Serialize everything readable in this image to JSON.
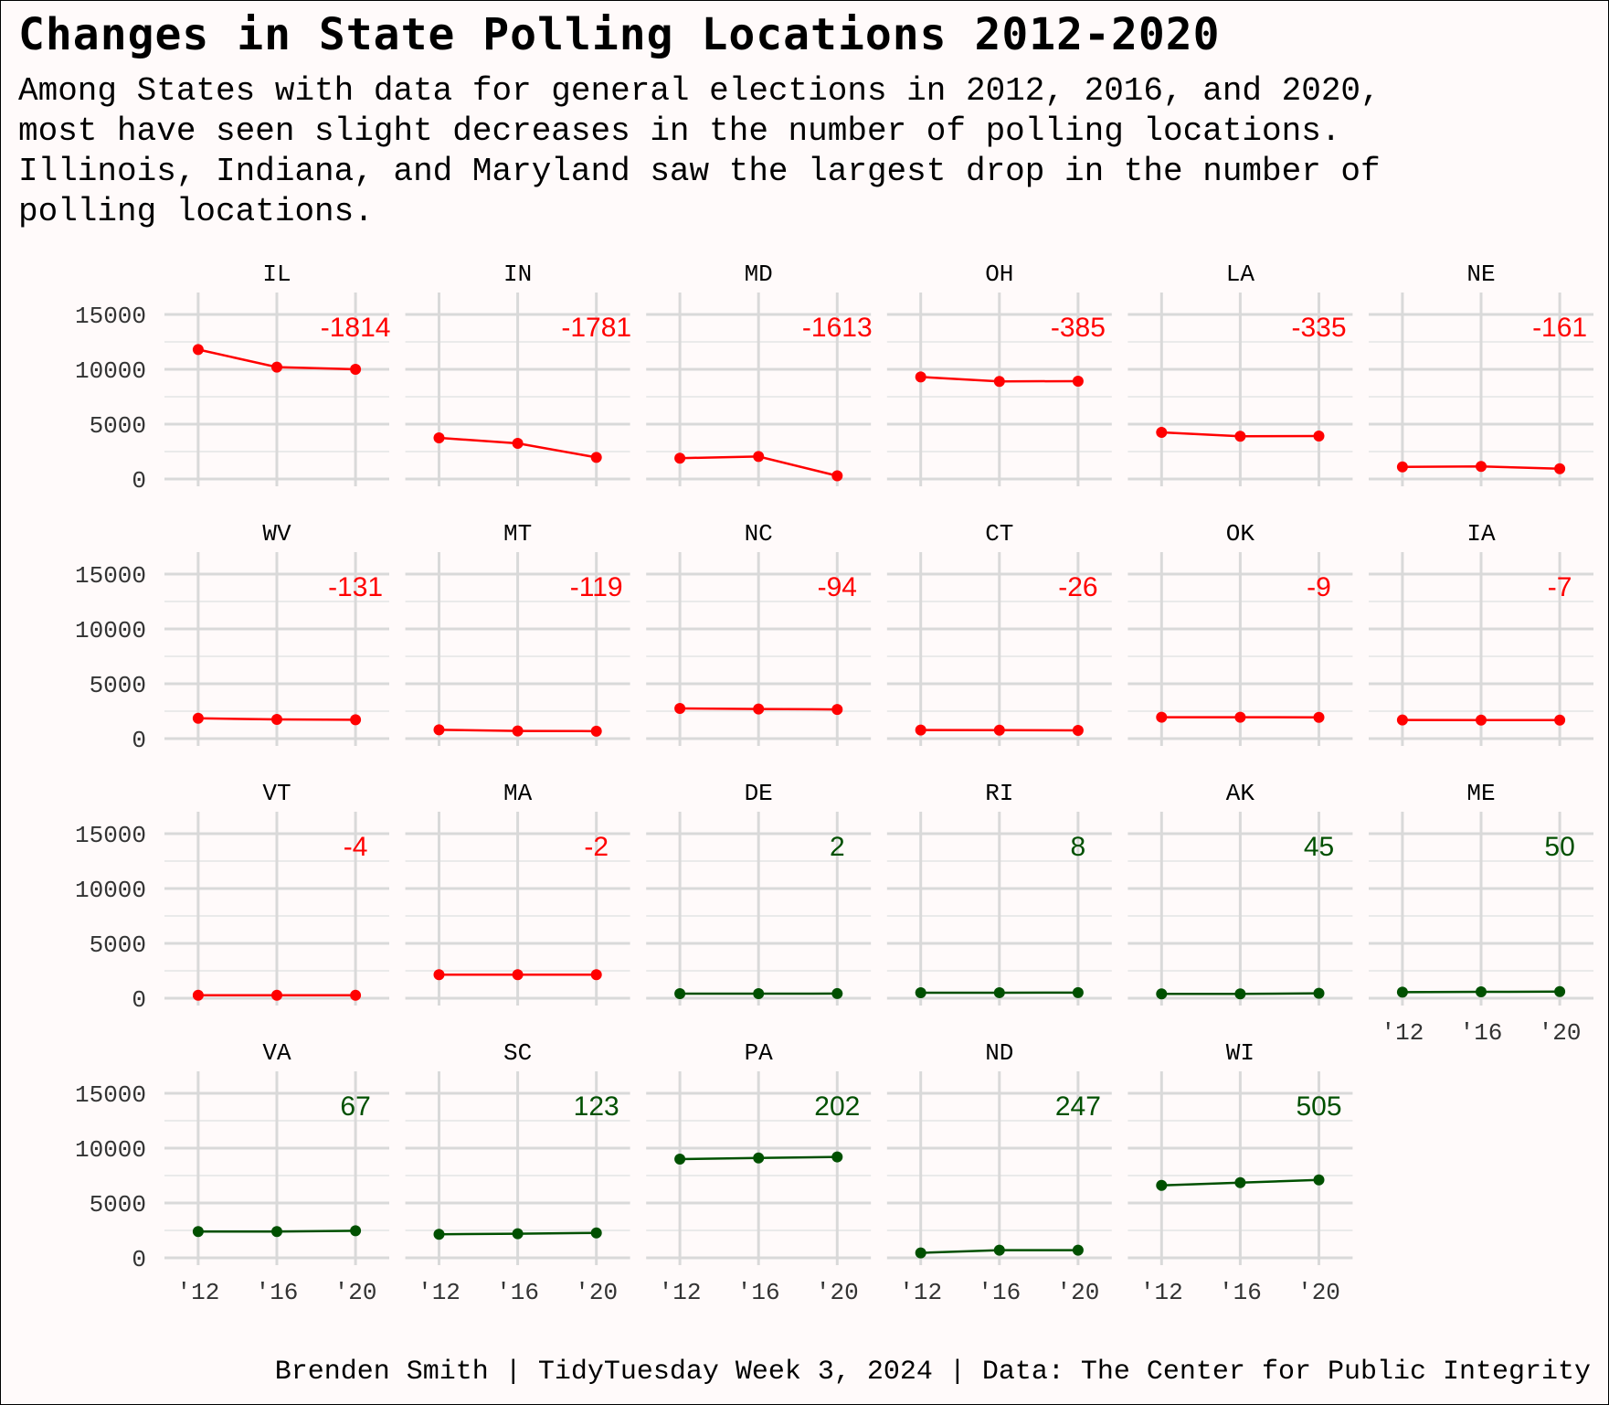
{
  "title": "Changes in State Polling Locations 2012-2020",
  "subtitle": "Among States with data for general elections in 2012, 2016, and 2020,\nmost have seen slight decreases in the number of polling locations.\nIllinois, Indiana, and Maryland saw the largest drop in the number of\npolling locations.",
  "caption": "Brenden Smith | TidyTuesday Week 3, 2024 | Data: The Center for Public Integrity",
  "colors": {
    "decrease": "#ff0000",
    "increase": "#005000",
    "grid": "#d9d9d9",
    "background": "#fffafa"
  },
  "chart_data": {
    "type": "line",
    "layout": "small-multiples",
    "x": [
      "'12",
      "'16",
      "'20"
    ],
    "y_ticks": [
      "0",
      "5000",
      "10000",
      "15000"
    ],
    "ylim": [
      0,
      15000
    ],
    "panels": [
      {
        "state": "IL",
        "label": "-1814",
        "values": [
          11800,
          10200,
          10000
        ]
      },
      {
        "state": "IN",
        "label": "-1781",
        "values": [
          3750,
          3250,
          1970
        ]
      },
      {
        "state": "MD",
        "label": "-1613",
        "values": [
          1900,
          2050,
          290
        ]
      },
      {
        "state": "OH",
        "label": "-385",
        "values": [
          9300,
          8900,
          8920
        ]
      },
      {
        "state": "LA",
        "label": "-335",
        "values": [
          4250,
          3900,
          3920
        ]
      },
      {
        "state": "NE",
        "label": "-161",
        "values": [
          1100,
          1150,
          940
        ]
      },
      {
        "state": "WV",
        "label": "-131",
        "values": [
          1850,
          1750,
          1720
        ]
      },
      {
        "state": "MT",
        "label": "-119",
        "values": [
          800,
          700,
          680
        ]
      },
      {
        "state": "NC",
        "label": "-94",
        "values": [
          2750,
          2700,
          2660
        ]
      },
      {
        "state": "CT",
        "label": "-26",
        "values": [
          780,
          770,
          750
        ]
      },
      {
        "state": "OK",
        "label": "-9",
        "values": [
          1950,
          1950,
          1940
        ]
      },
      {
        "state": "IA",
        "label": "-7",
        "values": [
          1700,
          1690,
          1690
        ]
      },
      {
        "state": "VT",
        "label": "-4",
        "values": [
          270,
          270,
          266
        ]
      },
      {
        "state": "MA",
        "label": "-2",
        "values": [
          2150,
          2150,
          2148
        ]
      },
      {
        "state": "DE",
        "label": "2",
        "values": [
          420,
          420,
          422
        ]
      },
      {
        "state": "RI",
        "label": "8",
        "values": [
          500,
          505,
          508
        ]
      },
      {
        "state": "AK",
        "label": "45",
        "values": [
          400,
          400,
          445
        ]
      },
      {
        "state": "ME",
        "label": "50",
        "values": [
          550,
          580,
          600
        ]
      },
      {
        "state": "VA",
        "label": "67",
        "values": [
          2400,
          2400,
          2467
        ]
      },
      {
        "state": "SC",
        "label": "123",
        "values": [
          2150,
          2200,
          2273
        ]
      },
      {
        "state": "PA",
        "label": "202",
        "values": [
          9000,
          9100,
          9202
        ]
      },
      {
        "state": "ND",
        "label": "247",
        "values": [
          450,
          700,
          697
        ]
      },
      {
        "state": "WI",
        "label": "505",
        "values": [
          6600,
          6850,
          7105
        ]
      }
    ]
  }
}
